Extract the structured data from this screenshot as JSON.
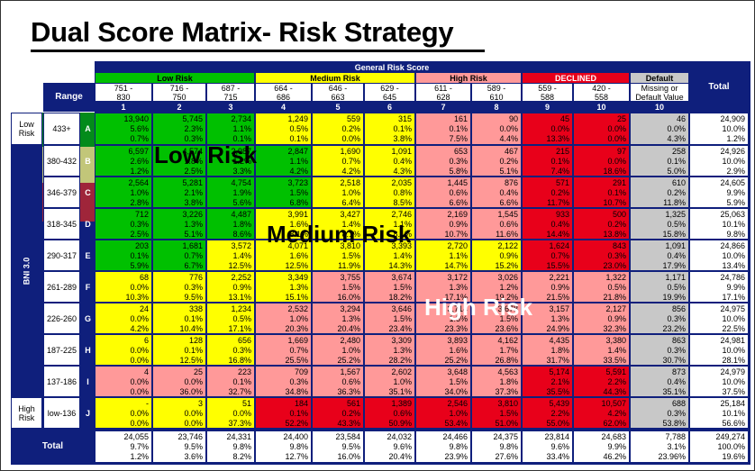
{
  "title": "Dual Score Matrix- Risk Strategy",
  "header": {
    "general": "General Risk Score",
    "range_label": "Range",
    "total_label": "Total",
    "groups": [
      {
        "label": "Low Risk",
        "span": 3,
        "color": "#00c000"
      },
      {
        "label": "Medium Risk",
        "span": 3,
        "color": "#ffff00"
      },
      {
        "label": "High Risk",
        "span": 2,
        "color": "#ff9999"
      },
      {
        "label": "DECLINED",
        "span": 2,
        "color": "#e8001a"
      },
      {
        "label": "Default",
        "span": 1,
        "color": "#c8c8c8"
      }
    ],
    "col_ranges": [
      "751 -\n830",
      "716 -\n750",
      "687 -\n715",
      "664 -\n686",
      "646 -\n663",
      "629 -\n645",
      "611 -\n628",
      "589 -\n610",
      "559 -\n588",
      "420 -\n558",
      "Missing or\nDefault Value"
    ],
    "col_numbers": [
      "1",
      "2",
      "3",
      "4",
      "5",
      "6",
      "7",
      "8",
      "9",
      "10",
      "10"
    ]
  },
  "bni_label": "BNI 3.0",
  "rows": [
    {
      "group": "Low\nRisk",
      "range": "433+",
      "letter": "A",
      "cells": [
        [
          "13,940",
          "5.6%",
          "0.7%"
        ],
        [
          "5,745",
          "2.3%",
          "0.3%"
        ],
        [
          "2,734",
          "1.1%",
          "0.1%"
        ],
        [
          "1,249",
          "0.5%",
          "0.1%"
        ],
        [
          "559",
          "0.2%",
          "0.0%"
        ],
        [
          "315",
          "0.1%",
          "3.8%"
        ],
        [
          "161",
          "0.1%",
          "7.5%"
        ],
        [
          "90",
          "0.0%",
          "4.4%"
        ],
        [
          "45",
          "0.0%",
          "13.3%"
        ],
        [
          "25",
          "0.0%",
          "0.0%"
        ],
        [
          "46",
          "0.0%",
          "4.3%"
        ]
      ],
      "total": [
        "24,909",
        "10.0%",
        "1.2%"
      ]
    },
    {
      "group": "",
      "range": "380-432",
      "letter": "B",
      "cells": [
        [
          "6,597",
          "2.6%",
          "1.2%"
        ],
        [
          "4,574",
          "1.8%",
          "2.5%"
        ],
        [
          "2,987",
          "1.2%",
          "3.3%"
        ],
        [
          "2,847",
          "1.1%",
          "4.2%"
        ],
        [
          "1,690",
          "0.7%",
          "4.2%"
        ],
        [
          "1,091",
          "0.4%",
          "4.3%"
        ],
        [
          "653",
          "0.3%",
          "5.8%"
        ],
        [
          "467",
          "0.2%",
          "5.1%"
        ],
        [
          "215",
          "0.1%",
          "7.4%"
        ],
        [
          "97",
          "0.0%",
          "18.6%"
        ],
        [
          "258",
          "0.1%",
          "5.0%"
        ]
      ],
      "total": [
        "24,926",
        "10.0%",
        "2.9%"
      ]
    },
    {
      "group": "",
      "range": "346-379",
      "letter": "C",
      "cells": [
        [
          "2,564",
          "1.0%",
          "2.8%"
        ],
        [
          "5,281",
          "2.1%",
          "3.8%"
        ],
        [
          "4,754",
          "1.9%",
          "5.6%"
        ],
        [
          "3,723",
          "1.5%",
          "6.8%"
        ],
        [
          "2,518",
          "1.0%",
          "6.4%"
        ],
        [
          "2,035",
          "0.8%",
          "8.5%"
        ],
        [
          "1,445",
          "0.6%",
          "6.6%"
        ],
        [
          "876",
          "0.4%",
          "6.6%"
        ],
        [
          "571",
          "0.2%",
          "11.7%"
        ],
        [
          "291",
          "0.1%",
          "10.7%"
        ],
        [
          "610",
          "0.2%",
          "11.8%"
        ]
      ],
      "total": [
        "24,605",
        "9.9%",
        "5.9%"
      ]
    },
    {
      "group": "",
      "range": "318-345",
      "letter": "D",
      "cells": [
        [
          "712",
          "0.3%",
          "2.5%"
        ],
        [
          "3,226",
          "1.3%",
          "5.1%"
        ],
        [
          "4,487",
          "1.8%",
          "8.6%"
        ],
        [
          "3,991",
          "1.6%",
          "8.1%"
        ],
        [
          "3,427",
          "1.4%",
          "8.1%"
        ],
        [
          "2,746",
          "1.1%",
          "8.1%"
        ],
        [
          "2,169",
          "0.9%",
          "10.7%"
        ],
        [
          "1,545",
          "0.6%",
          "11.6%"
        ],
        [
          "933",
          "0.4%",
          "14.4%"
        ],
        [
          "500",
          "0.2%",
          "13.8%"
        ],
        [
          "1,325",
          "0.5%",
          "15.8%"
        ]
      ],
      "total": [
        "25,063",
        "10.1%",
        "9.8%"
      ]
    },
    {
      "group": "",
      "range": "290-317",
      "letter": "E",
      "cells": [
        [
          "203",
          "0.1%",
          "5.9%"
        ],
        [
          "1,681",
          "0.7%",
          "6.7%"
        ],
        [
          "3,572",
          "1.4%",
          "12.5%"
        ],
        [
          "4,071",
          "1.6%",
          "12.5%"
        ],
        [
          "3,810",
          "1.5%",
          "11.9%"
        ],
        [
          "3,393",
          "1.4%",
          "14.3%"
        ],
        [
          "2,720",
          "1.1%",
          "14.7%"
        ],
        [
          "2,122",
          "0.9%",
          "15.2%"
        ],
        [
          "1,624",
          "0.7%",
          "15.5%"
        ],
        [
          "843",
          "0.3%",
          "23.0%"
        ],
        [
          "1,091",
          "0.4%",
          "17.9%"
        ]
      ],
      "total": [
        "24,866",
        "10.0%",
        "13.4%"
      ]
    },
    {
      "group": "",
      "range": "261-289",
      "letter": "F",
      "cells": [
        [
          "68",
          "0.0%",
          "10.3%"
        ],
        [
          "776",
          "0.3%",
          "9.5%"
        ],
        [
          "2,252",
          "0.9%",
          "13.1%"
        ],
        [
          "3,349",
          "1.3%",
          "15.1%"
        ],
        [
          "3,755",
          "1.5%",
          "16.0%"
        ],
        [
          "3,674",
          "1.5%",
          "18.2%"
        ],
        [
          "3,172",
          "1.3%",
          "17.1%"
        ],
        [
          "3,026",
          "1.2%",
          "19.2%"
        ],
        [
          "2,221",
          "0.9%",
          "21.5%"
        ],
        [
          "1,322",
          "0.5%",
          "21.8%"
        ],
        [
          "1,171",
          "0.5%",
          "19.9%"
        ]
      ],
      "total": [
        "24,786",
        "9.9%",
        "17.1%"
      ]
    },
    {
      "group": "",
      "range": "226-260",
      "letter": "G",
      "cells": [
        [
          "24",
          "0.0%",
          "4.2%"
        ],
        [
          "338",
          "0.1%",
          "10.4%"
        ],
        [
          "1,234",
          "0.5%",
          "17.1%"
        ],
        [
          "2,532",
          "1.0%",
          "20.3%"
        ],
        [
          "3,294",
          "1.3%",
          "20.4%"
        ],
        [
          "3,646",
          "1.5%",
          "23.4%"
        ],
        [
          "3,714",
          "1.5%",
          "23.3%"
        ],
        [
          "3,678",
          "1.5%",
          "23.6%"
        ],
        [
          "3,157",
          "1.3%",
          "24.9%"
        ],
        [
          "2,127",
          "0.9%",
          "32.3%"
        ],
        [
          "856",
          "0.3%",
          "23.2%"
        ]
      ],
      "total": [
        "24,975",
        "10.0%",
        "22.5%"
      ]
    },
    {
      "group": "",
      "range": "187-225",
      "letter": "H",
      "cells": [
        [
          "6",
          "0.0%",
          "0.0%"
        ],
        [
          "128",
          "0.1%",
          "12.5%"
        ],
        [
          "656",
          "0.3%",
          "16.8%"
        ],
        [
          "1,669",
          "0.7%",
          "25.5%"
        ],
        [
          "2,480",
          "1.0%",
          "25.2%"
        ],
        [
          "3,309",
          "1.3%",
          "28.2%"
        ],
        [
          "3,893",
          "1.6%",
          "25.2%"
        ],
        [
          "4,162",
          "1.7%",
          "26.8%"
        ],
        [
          "4,435",
          "1.8%",
          "31.7%"
        ],
        [
          "3,380",
          "1.4%",
          "33.5%"
        ],
        [
          "863",
          "0.3%",
          "30.7%"
        ]
      ],
      "total": [
        "24,981",
        "10.0%",
        "28.1%"
      ]
    },
    {
      "group": "",
      "range": "137-186",
      "letter": "I",
      "cells": [
        [
          "4",
          "0.0%",
          "0.0%"
        ],
        [
          "25",
          "0.0%",
          "36.0%"
        ],
        [
          "223",
          "0.1%",
          "32.7%"
        ],
        [
          "709",
          "0.3%",
          "34.8%"
        ],
        [
          "1,567",
          "0.6%",
          "36.3%"
        ],
        [
          "2,602",
          "1.0%",
          "35.1%"
        ],
        [
          "3,648",
          "1.5%",
          "34.0%"
        ],
        [
          "4,563",
          "1.8%",
          "37.3%"
        ],
        [
          "5,174",
          "2.1%",
          "35.5%"
        ],
        [
          "5,591",
          "2.2%",
          "44.3%"
        ],
        [
          "873",
          "0.4%",
          "35.1%"
        ]
      ],
      "total": [
        "24,979",
        "10.0%",
        "37.5%"
      ]
    },
    {
      "group": "High\nRisk",
      "range": "low-136",
      "letter": "J",
      "cells": [
        [
          "-",
          "0.0%",
          "0.0%"
        ],
        [
          "3",
          "0.0%",
          "0.0%"
        ],
        [
          "51",
          "0.0%",
          "37.3%"
        ],
        [
          "184",
          "0.1%",
          "52.2%"
        ],
        [
          "561",
          "0.2%",
          "43.3%"
        ],
        [
          "1,389",
          "0.6%",
          "50.9%"
        ],
        [
          "2,546",
          "1.0%",
          "53.4%"
        ],
        [
          "3,810",
          "1.5%",
          "51.0%"
        ],
        [
          "5,439",
          "2.2%",
          "55.0%"
        ],
        [
          "10,507",
          "4.2%",
          "62.0%"
        ],
        [
          "688",
          "0.3%",
          "53.8%"
        ]
      ],
      "total": [
        "25,184",
        "10.1%",
        "56.6%"
      ]
    }
  ],
  "totals": {
    "label": "Total",
    "cells": [
      [
        "24,055",
        "9.7%",
        "1.2%"
      ],
      [
        "23,746",
        "9.5%",
        "3.6%"
      ],
      [
        "24,331",
        "9.8%",
        "8.2%"
      ],
      [
        "24,400",
        "9.8%",
        "12.7%"
      ],
      [
        "23,584",
        "9.5%",
        "16.0%"
      ],
      [
        "24,032",
        "9.6%",
        "20.4%"
      ],
      [
        "24,466",
        "9.8%",
        "23.9%"
      ],
      [
        "24,375",
        "9.8%",
        "27.6%"
      ],
      [
        "23,814",
        "9.6%",
        "33.4%"
      ],
      [
        "24,683",
        "9.9%",
        "46.2%"
      ],
      [
        "7,788",
        "3.1%",
        "23.96%"
      ]
    ],
    "grand": [
      "249,274",
      "100.0%",
      "19.6%"
    ]
  },
  "zones": {
    "low": "Low Risk",
    "medium": "Medium Risk",
    "high": "High Risk"
  },
  "colors": {
    "green": "#00c000",
    "yellow": "#ffff00",
    "pink": "#ff9999",
    "red": "#e8001a",
    "grey": "#c8c8c8",
    "navy": "#0f1f7c"
  },
  "color_grid": [
    [
      "green",
      "green",
      "green",
      "yellow",
      "yellow",
      "yellow",
      "pink",
      "pink",
      "red",
      "red",
      "grey"
    ],
    [
      "green",
      "green",
      "green",
      "green",
      "yellow",
      "yellow",
      "pink",
      "pink",
      "red",
      "red",
      "grey"
    ],
    [
      "green",
      "green",
      "green",
      "green",
      "yellow",
      "yellow",
      "pink",
      "pink",
      "red",
      "red",
      "grey"
    ],
    [
      "green",
      "green",
      "green",
      "yellow",
      "yellow",
      "yellow",
      "pink",
      "pink",
      "red",
      "red",
      "grey"
    ],
    [
      "green",
      "green",
      "yellow",
      "yellow",
      "yellow",
      "yellow",
      "yellow",
      "yellow",
      "red",
      "red",
      "grey"
    ],
    [
      "yellow",
      "yellow",
      "yellow",
      "yellow",
      "pink",
      "pink",
      "pink",
      "pink",
      "pink",
      "pink",
      "grey"
    ],
    [
      "yellow",
      "yellow",
      "yellow",
      "pink",
      "pink",
      "pink",
      "pink",
      "pink",
      "pink",
      "pink",
      "grey"
    ],
    [
      "yellow",
      "yellow",
      "yellow",
      "pink",
      "pink",
      "pink",
      "pink",
      "pink",
      "pink",
      "pink",
      "grey"
    ],
    [
      "pink",
      "pink",
      "pink",
      "pink",
      "pink",
      "pink",
      "pink",
      "pink",
      "red",
      "red",
      "grey"
    ],
    [
      "yellow",
      "yellow",
      "yellow",
      "red",
      "red",
      "red",
      "red",
      "red",
      "red",
      "red",
      "grey"
    ]
  ]
}
